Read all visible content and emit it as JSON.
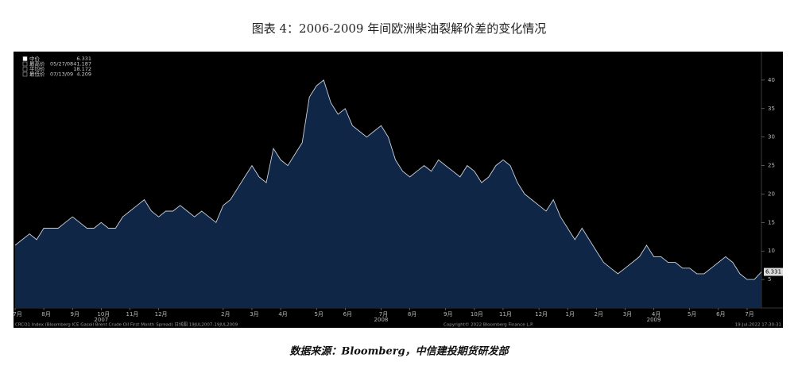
{
  "title": "图表 4：2006-2009 年间欧洲柴油裂解价差的变化情况",
  "source": "数据来源：Bloomberg，中信建投期货研发部",
  "chart_data": {
    "type": "area",
    "legend": [
      {
        "label": "中价",
        "value": 6.331
      },
      {
        "label": "最高价",
        "date": "05/27/08",
        "value": 41.187
      },
      {
        "label": "平均价",
        "value": 18.172
      },
      {
        "label": "最低价",
        "date": "07/13/09",
        "value": 4.209
      }
    ],
    "categories": [
      "7月",
      null,
      null,
      null,
      "8月",
      null,
      null,
      null,
      "9月",
      null,
      null,
      null,
      "10月",
      null,
      null,
      null,
      "11月",
      null,
      null,
      null,
      "12月",
      null,
      null,
      null,
      null,
      null,
      null,
      null,
      null,
      "2月",
      null,
      null,
      null,
      "3月",
      null,
      null,
      null,
      "4月",
      null,
      null,
      null,
      null,
      "5月",
      null,
      null,
      null,
      "6月",
      null,
      null,
      null,
      null,
      "7月",
      null,
      null,
      null,
      "8月",
      null,
      null,
      null,
      null,
      "9月",
      null,
      null,
      null,
      "10月",
      null,
      null,
      null,
      "11月",
      null,
      null,
      null,
      null,
      "12月",
      null,
      null,
      null,
      "1月",
      null,
      null,
      null,
      "2月",
      null,
      null,
      null,
      "3月",
      null,
      null,
      null,
      "4月",
      null,
      null,
      null,
      null,
      "5月",
      null,
      null,
      null,
      "6月",
      null,
      null,
      null,
      "7月",
      null,
      null
    ],
    "years": [
      null,
      null,
      null,
      null,
      null,
      null,
      null,
      null,
      null,
      null,
      null,
      null,
      "2007",
      null,
      null,
      null,
      null,
      null,
      null,
      null,
      null,
      null,
      null,
      null,
      null,
      null,
      null,
      null,
      null,
      null,
      null,
      null,
      null,
      null,
      null,
      null,
      null,
      null,
      null,
      null,
      null,
      null,
      null,
      null,
      null,
      null,
      null,
      null,
      null,
      null,
      null,
      "2008",
      null,
      null,
      null,
      null,
      null,
      null,
      null,
      null,
      null,
      null,
      null,
      null,
      null,
      null,
      null,
      null,
      null,
      null,
      null,
      null,
      null,
      null,
      null,
      null,
      null,
      null,
      null,
      null,
      null,
      null,
      null,
      null,
      null,
      null,
      null,
      null,
      null,
      "2009",
      null,
      null,
      null,
      null,
      null,
      null,
      null,
      null,
      null,
      null,
      null,
      null,
      null,
      null,
      null
    ],
    "series": [
      {
        "name": "中价",
        "color": "#c9d2de",
        "fill": "#0f2647",
        "values": [
          11,
          12,
          13,
          12,
          14,
          14,
          14,
          15,
          16,
          15,
          14,
          14,
          15,
          14,
          14,
          16,
          17,
          18,
          19,
          17,
          16,
          17,
          17,
          18,
          17,
          16,
          17,
          16,
          15,
          18,
          19,
          21,
          23,
          25,
          23,
          22,
          28,
          26,
          25,
          27,
          29,
          37,
          39,
          40,
          36,
          34,
          35,
          32,
          31,
          30,
          31,
          32,
          30,
          26,
          24,
          23,
          24,
          25,
          24,
          26,
          25,
          24,
          23,
          25,
          24,
          22,
          23,
          25,
          26,
          25,
          22,
          20,
          19,
          18,
          17,
          19,
          16,
          14,
          12,
          14,
          12,
          10,
          8,
          7,
          6,
          7,
          8,
          9,
          11,
          9,
          9,
          8,
          8,
          7,
          7,
          6,
          6,
          7,
          8,
          9,
          8,
          6,
          5,
          5,
          6.331
        ]
      }
    ],
    "ylim": [
      0,
      45
    ],
    "yticks": [
      5,
      10,
      15,
      20,
      25,
      30,
      35,
      40
    ],
    "grid": false,
    "footer": [
      "CRCO1 Index (Bloomberg ICE Gasoil Brent Crude Oil First Month Spread) 日线图 19JUL2007-19JUL2009",
      "Copyright© 2022 Bloomberg Finance L.P.",
      "19-Jul-2022 17:30:31"
    ]
  }
}
